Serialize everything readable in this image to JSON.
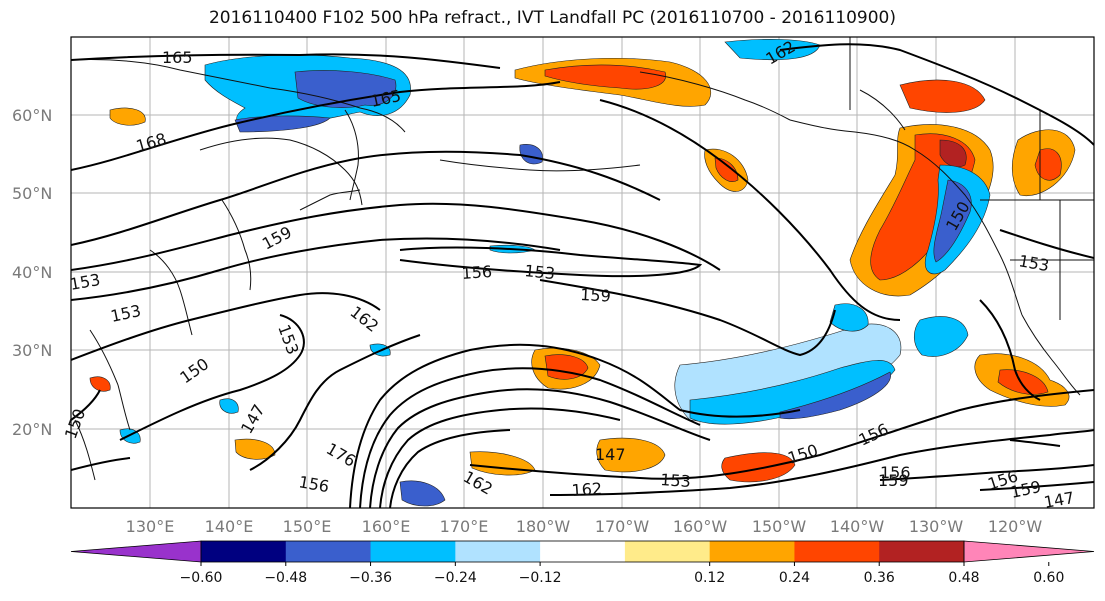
{
  "title": "2016110400 F102 500 hPa refract., IVT Landfall PC (2016110700 - 2016110900)",
  "map": {
    "lat_labels": [
      "60°N",
      "50°N",
      "40°N",
      "30°N",
      "20°N"
    ],
    "lon_labels": [
      "130°E",
      "140°E",
      "150°E",
      "160°E",
      "170°E",
      "180°W",
      "170°W",
      "160°W",
      "150°W",
      "140°W",
      "130°W",
      "120°W"
    ],
    "contour_labels": [
      "165",
      "168",
      "165",
      "162",
      "159",
      "156",
      "153",
      "159",
      "162",
      "153",
      "150",
      "147",
      "153",
      "150",
      "176",
      "156",
      "162",
      "147",
      "153",
      "162",
      "150",
      "156",
      "156",
      "159",
      "153",
      "156",
      "159",
      "147",
      "150",
      "153",
      "156"
    ]
  },
  "colorbar": {
    "ticks": [
      "−0.60",
      "−0.48",
      "−0.36",
      "−0.24",
      "−0.12",
      "0.12",
      "0.24",
      "0.36",
      "0.48",
      "0.60"
    ],
    "colors": [
      "#9932cc",
      "#000080",
      "#3a5fcd",
      "#00bfff",
      "#b0e2ff",
      "#ffffff",
      "#ffeb8a",
      "#ffa500",
      "#ff4500",
      "#b22222",
      "#ff85b8"
    ]
  }
}
